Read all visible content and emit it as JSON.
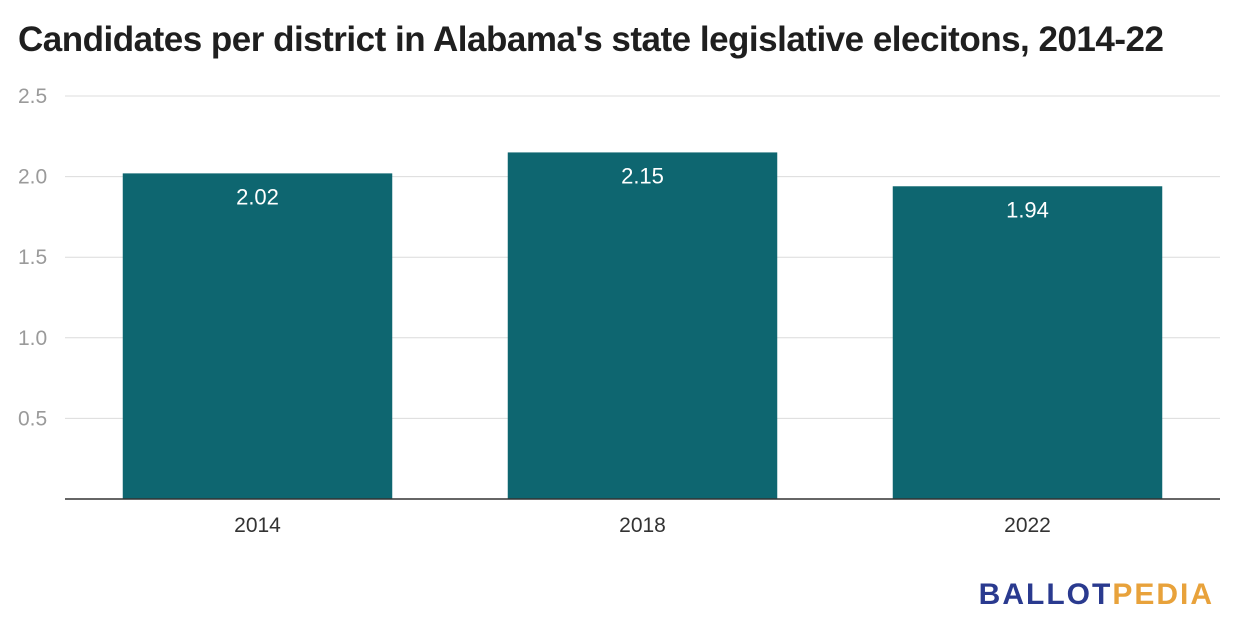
{
  "chart_data": {
    "type": "bar",
    "title": "Candidates per district in Alabama's state legislative elecitons, 2014-22",
    "categories": [
      "2014",
      "2018",
      "2022"
    ],
    "values": [
      2.02,
      2.15,
      1.94
    ],
    "value_labels": [
      "2.02",
      "2.15",
      "1.94"
    ],
    "y_ticks": [
      0.5,
      1.0,
      1.5,
      2.0,
      2.5
    ],
    "y_tick_labels": [
      "0.5",
      "1.0",
      "1.5",
      "2.0",
      "2.5"
    ],
    "ylim": [
      0,
      2.5
    ],
    "xlabel": "",
    "ylabel": "",
    "grid": true,
    "bar_color": "#0e6670"
  },
  "branding": {
    "logo_part1": "BALLOT",
    "logo_part2": "PEDIA",
    "logo_color1": "#2a3a8f",
    "logo_color2": "#e8a23b"
  }
}
